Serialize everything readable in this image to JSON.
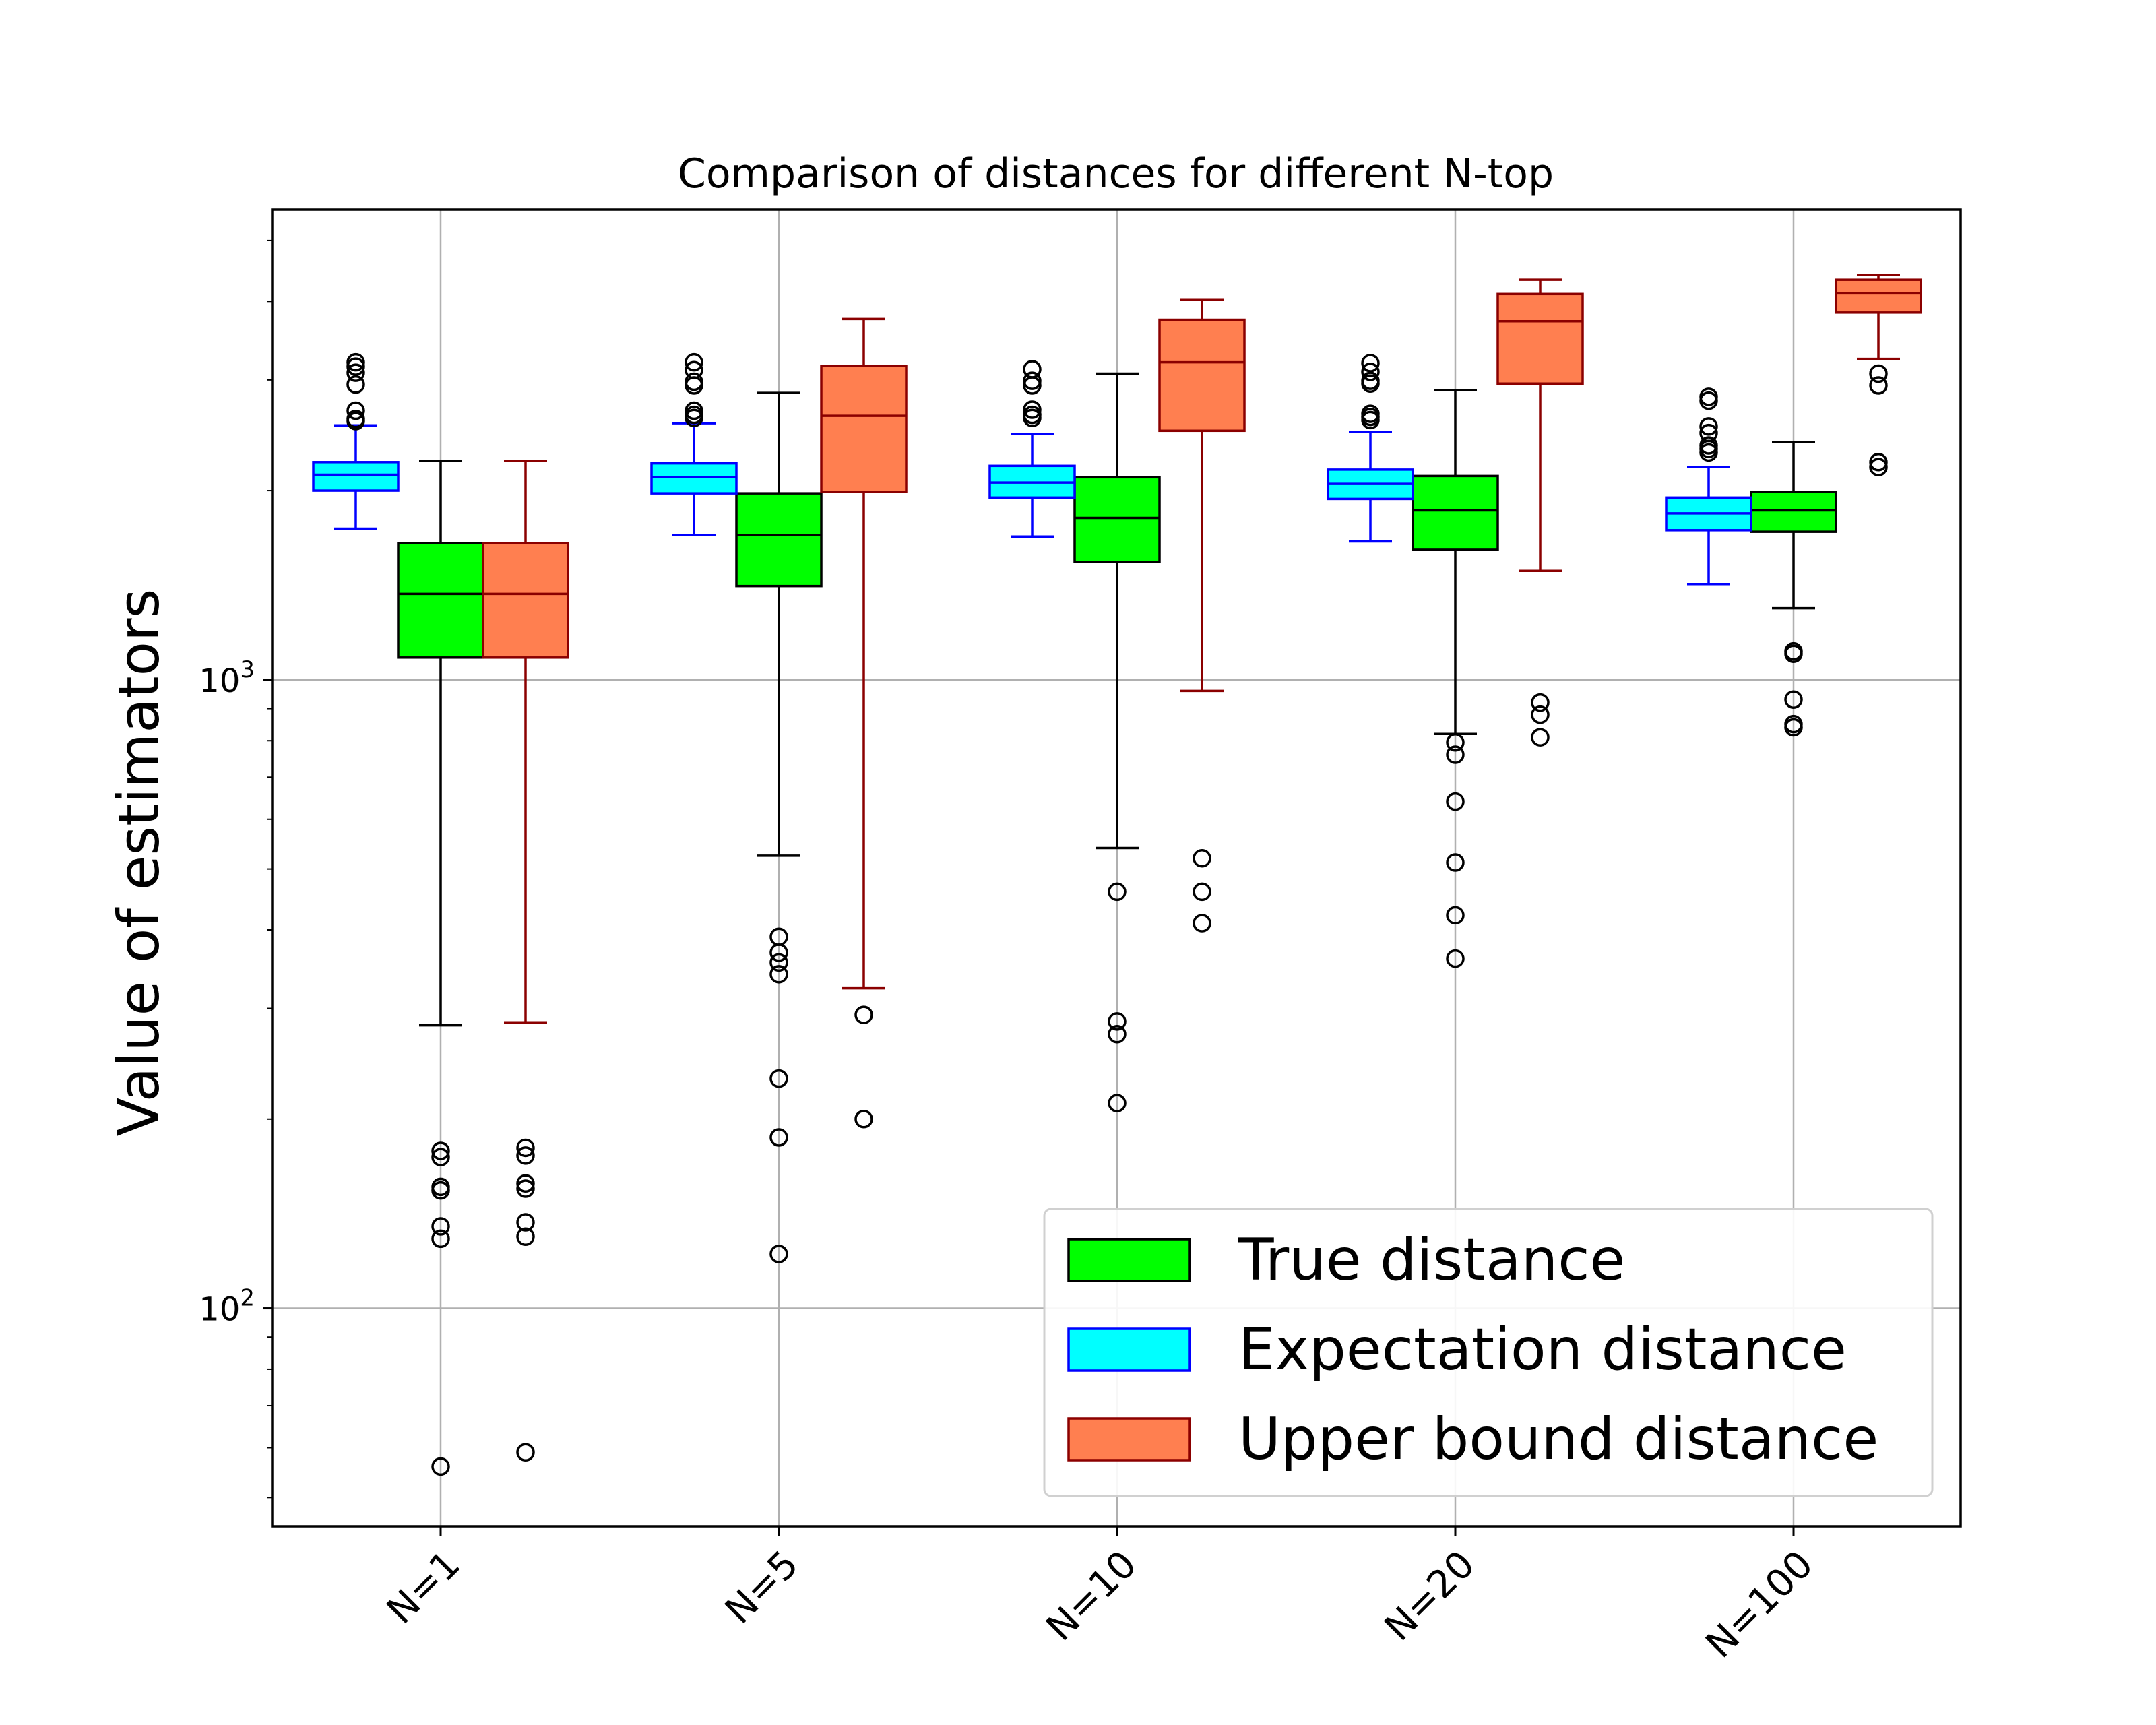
{
  "chart_data": {
    "type": "box",
    "title": "Comparison of distances for different N-top",
    "xlabel": "",
    "ylabel": "Value of estimators",
    "yscale": "log",
    "ylim": [
      45,
      5600
    ],
    "yticks": [
      {
        "value": 100,
        "base": "10",
        "exp": "2"
      },
      {
        "value": 1000,
        "base": "10",
        "exp": "3"
      }
    ],
    "grid": true,
    "legend_position": "lower right",
    "categories": [
      "N=1",
      "N=5",
      "N=10",
      "N=20",
      "N=100"
    ],
    "series": [
      {
        "name": "True distance",
        "fill": "#00ff00",
        "edge": "#000000",
        "median_color": "#000000",
        "offset": 0,
        "boxes": [
          {
            "whislo": 282,
            "q1": 1085,
            "med": 1370,
            "q3": 1650,
            "whishi": 2230,
            "fliers": [
              178,
              174,
              156,
              154,
              135,
              129,
              56
            ]
          },
          {
            "whislo": 525,
            "q1": 1410,
            "med": 1700,
            "q3": 1980,
            "whishi": 2860,
            "fliers": [
              390,
              368,
              355,
              340,
              232,
              187,
              122
            ]
          },
          {
            "whislo": 540,
            "q1": 1540,
            "med": 1810,
            "q3": 2100,
            "whishi": 3070,
            "fliers": [
              460,
              286,
              273,
              212
            ]
          },
          {
            "whislo": 820,
            "q1": 1610,
            "med": 1860,
            "q3": 2110,
            "whishi": 2890,
            "fliers": [
              795,
              760,
              640,
              512,
              422,
              360
            ]
          },
          {
            "whislo": 1300,
            "q1": 1720,
            "med": 1860,
            "q3": 1990,
            "whishi": 2390,
            "fliers": [
              1110,
              1100,
              930,
              850,
              840
            ]
          }
        ]
      },
      {
        "name": "Expectation distance",
        "fill": "#00ffff",
        "edge": "#0000ff",
        "median_color": "#0000ff",
        "offset": -1,
        "boxes": [
          {
            "whislo": 1740,
            "q1": 2000,
            "med": 2120,
            "q3": 2220,
            "whishi": 2540,
            "fliers": [
              3200,
              3150,
              3080,
              2950,
              2680,
              2600,
              2580
            ]
          },
          {
            "whislo": 1700,
            "q1": 1980,
            "med": 2100,
            "q3": 2210,
            "whishi": 2560,
            "fliers": [
              3200,
              3110,
              2980,
              2940,
              2680,
              2640,
              2610
            ]
          },
          {
            "whislo": 1690,
            "q1": 1950,
            "med": 2060,
            "q3": 2190,
            "whishi": 2460,
            "fliers": [
              3120,
              2990,
              2940,
              2690,
              2640,
              2610
            ]
          },
          {
            "whislo": 1660,
            "q1": 1940,
            "med": 2050,
            "q3": 2160,
            "whishi": 2480,
            "fliers": [
              3190,
              3090,
              2990,
              2960,
              2650,
              2620,
              2590
            ]
          },
          {
            "whislo": 1420,
            "q1": 1730,
            "med": 1840,
            "q3": 1950,
            "whishi": 2180,
            "fliers": [
              2820,
              2780,
              2530,
              2470,
              2360,
              2330,
              2300
            ]
          }
        ]
      },
      {
        "name": "Upper bound distance",
        "fill": "#ff7f50",
        "edge": "#8b0000",
        "median_color": "#8b0000",
        "offset": 1,
        "boxes": [
          {
            "whislo": 285,
            "q1": 1085,
            "med": 1370,
            "q3": 1650,
            "whishi": 2230,
            "fliers": [
              180,
              175,
              158,
              155,
              137,
              130,
              59
            ]
          },
          {
            "whislo": 323,
            "q1": 1990,
            "med": 2630,
            "q3": 3160,
            "whishi": 3750,
            "fliers": [
              293,
              200
            ]
          },
          {
            "whislo": 960,
            "q1": 2490,
            "med": 3200,
            "q3": 3740,
            "whishi": 4030,
            "fliers": [
              520,
              460,
              410
            ]
          },
          {
            "whislo": 1490,
            "q1": 2960,
            "med": 3720,
            "q3": 4110,
            "whishi": 4330,
            "fliers": [
              920,
              880,
              810
            ]
          },
          {
            "whislo": 3240,
            "q1": 3840,
            "med": 4120,
            "q3": 4330,
            "whishi": 4410,
            "fliers": [
              3070,
              2940,
              2220,
              2180
            ]
          }
        ]
      }
    ]
  }
}
